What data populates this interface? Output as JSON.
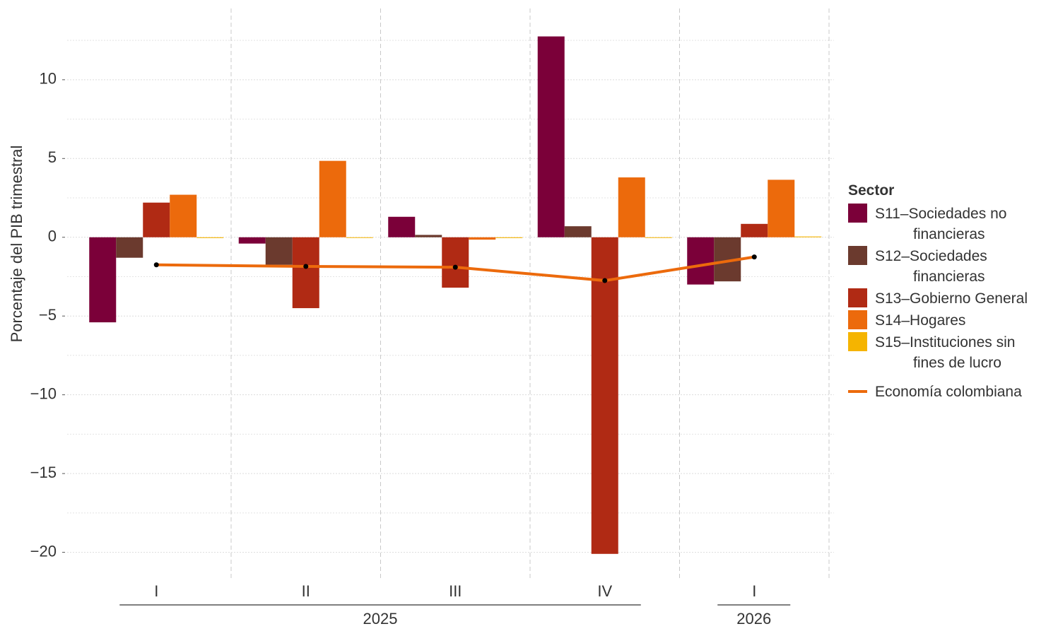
{
  "chart_data": {
    "type": "bar",
    "y_label": "Porcentaje del PIB trimestral",
    "legend_title": "Sector",
    "categories": [
      "I",
      "II",
      "III",
      "IV",
      "I"
    ],
    "x_groups": [
      {
        "label": "2025",
        "count": 4
      },
      {
        "label": "2026",
        "count": 1
      }
    ],
    "series": [
      {
        "name": "S11–Sociedades no financieras",
        "color": "#7b0039",
        "values": [
          -5.4,
          -0.4,
          1.3,
          12.75,
          -3.0
        ]
      },
      {
        "name": "S12–Sociedades financieras",
        "color": "#6b3a2e",
        "values": [
          -1.3,
          -1.75,
          0.15,
          0.7,
          -2.8
        ]
      },
      {
        "name": "S13–Gobierno General",
        "color": "#b02a14",
        "values": [
          2.2,
          -4.5,
          -3.2,
          -20.1,
          0.85
        ]
      },
      {
        "name": "S14–Hogares",
        "color": "#ec6a0c",
        "values": [
          2.7,
          4.85,
          -0.15,
          3.8,
          3.65
        ]
      },
      {
        "name": "S15–Instituciones sin fines de lucro",
        "color": "#f5b400",
        "values": [
          -0.05,
          0.0,
          -0.05,
          0.0,
          0.05
        ]
      }
    ],
    "lines": [
      {
        "name": "Economía colombiana",
        "color": "#ec6a0c",
        "values": [
          -1.75,
          -1.85,
          -1.9,
          -2.75,
          -1.25
        ]
      }
    ],
    "ylim": [
      -21.5,
      14.3
    ],
    "yticks": [
      {
        "value": -20,
        "label": "−20"
      },
      {
        "value": -15,
        "label": "−15"
      },
      {
        "value": -10,
        "label": "−10"
      },
      {
        "value": -5,
        "label": "−5"
      },
      0,
      5,
      10
    ],
    "grid": true
  }
}
